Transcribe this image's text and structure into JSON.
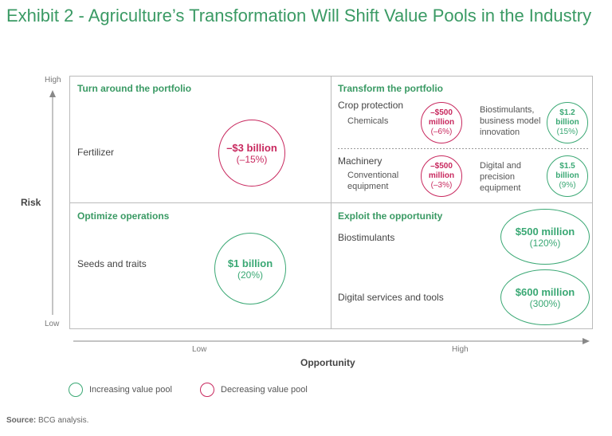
{
  "title": "Exhibit 2 - Agriculture’s Transformation Will Shift Value Pools in the Industry",
  "axes": {
    "y_high": "High",
    "y_low": "Low",
    "y_label": "Risk",
    "x_low": "Low",
    "x_high": "High",
    "x_label": "Opportunity"
  },
  "quadrants": {
    "top_left": {
      "title": "Turn around the portfolio",
      "item": "Fertilizer",
      "bubble": {
        "value": "–$3 billion",
        "pct": "(–15%)",
        "type": "decreasing"
      }
    },
    "top_right": {
      "title": "Transform the portfolio",
      "crop": {
        "label": "Crop protection",
        "sub": "Chemicals",
        "dec_bubble": {
          "value": "–$500 million",
          "pct": "(–6%)",
          "type": "decreasing"
        },
        "inc_text": "Biostimulants, business model innovation",
        "inc_bubble": {
          "value": "$1.2 billion",
          "pct": "(15%)",
          "type": "increasing"
        }
      },
      "machinery": {
        "label": "Machinery",
        "sub": "Conventional equipment",
        "dec_bubble": {
          "value": "–$500 million",
          "pct": "(–3%)",
          "type": "decreasing"
        },
        "inc_text": "Digital and precision equipment",
        "inc_bubble": {
          "value": "$1.5 billion",
          "pct": "(9%)",
          "type": "increasing"
        }
      }
    },
    "bottom_left": {
      "title": "Optimize operations",
      "item": "Seeds and traits",
      "bubble": {
        "value": "$1 billion",
        "pct": "(20%)",
        "type": "increasing"
      }
    },
    "bottom_right": {
      "title": "Exploit the opportunity",
      "item1": "Biostimulants",
      "bubble1": {
        "value": "$500 million",
        "pct": "(120%)",
        "type": "increasing"
      },
      "item2": "Digital services and tools",
      "bubble2": {
        "value": "$600 million",
        "pct": "(300%)",
        "type": "increasing"
      }
    }
  },
  "legend": {
    "increasing": "Increasing value pool",
    "decreasing": "Decreasing value pool"
  },
  "source": {
    "label": "Source:",
    "text": "BCG analysis."
  },
  "colors": {
    "increasing": "#3aa874",
    "decreasing": "#c8285e",
    "title": "#3a9a64"
  }
}
